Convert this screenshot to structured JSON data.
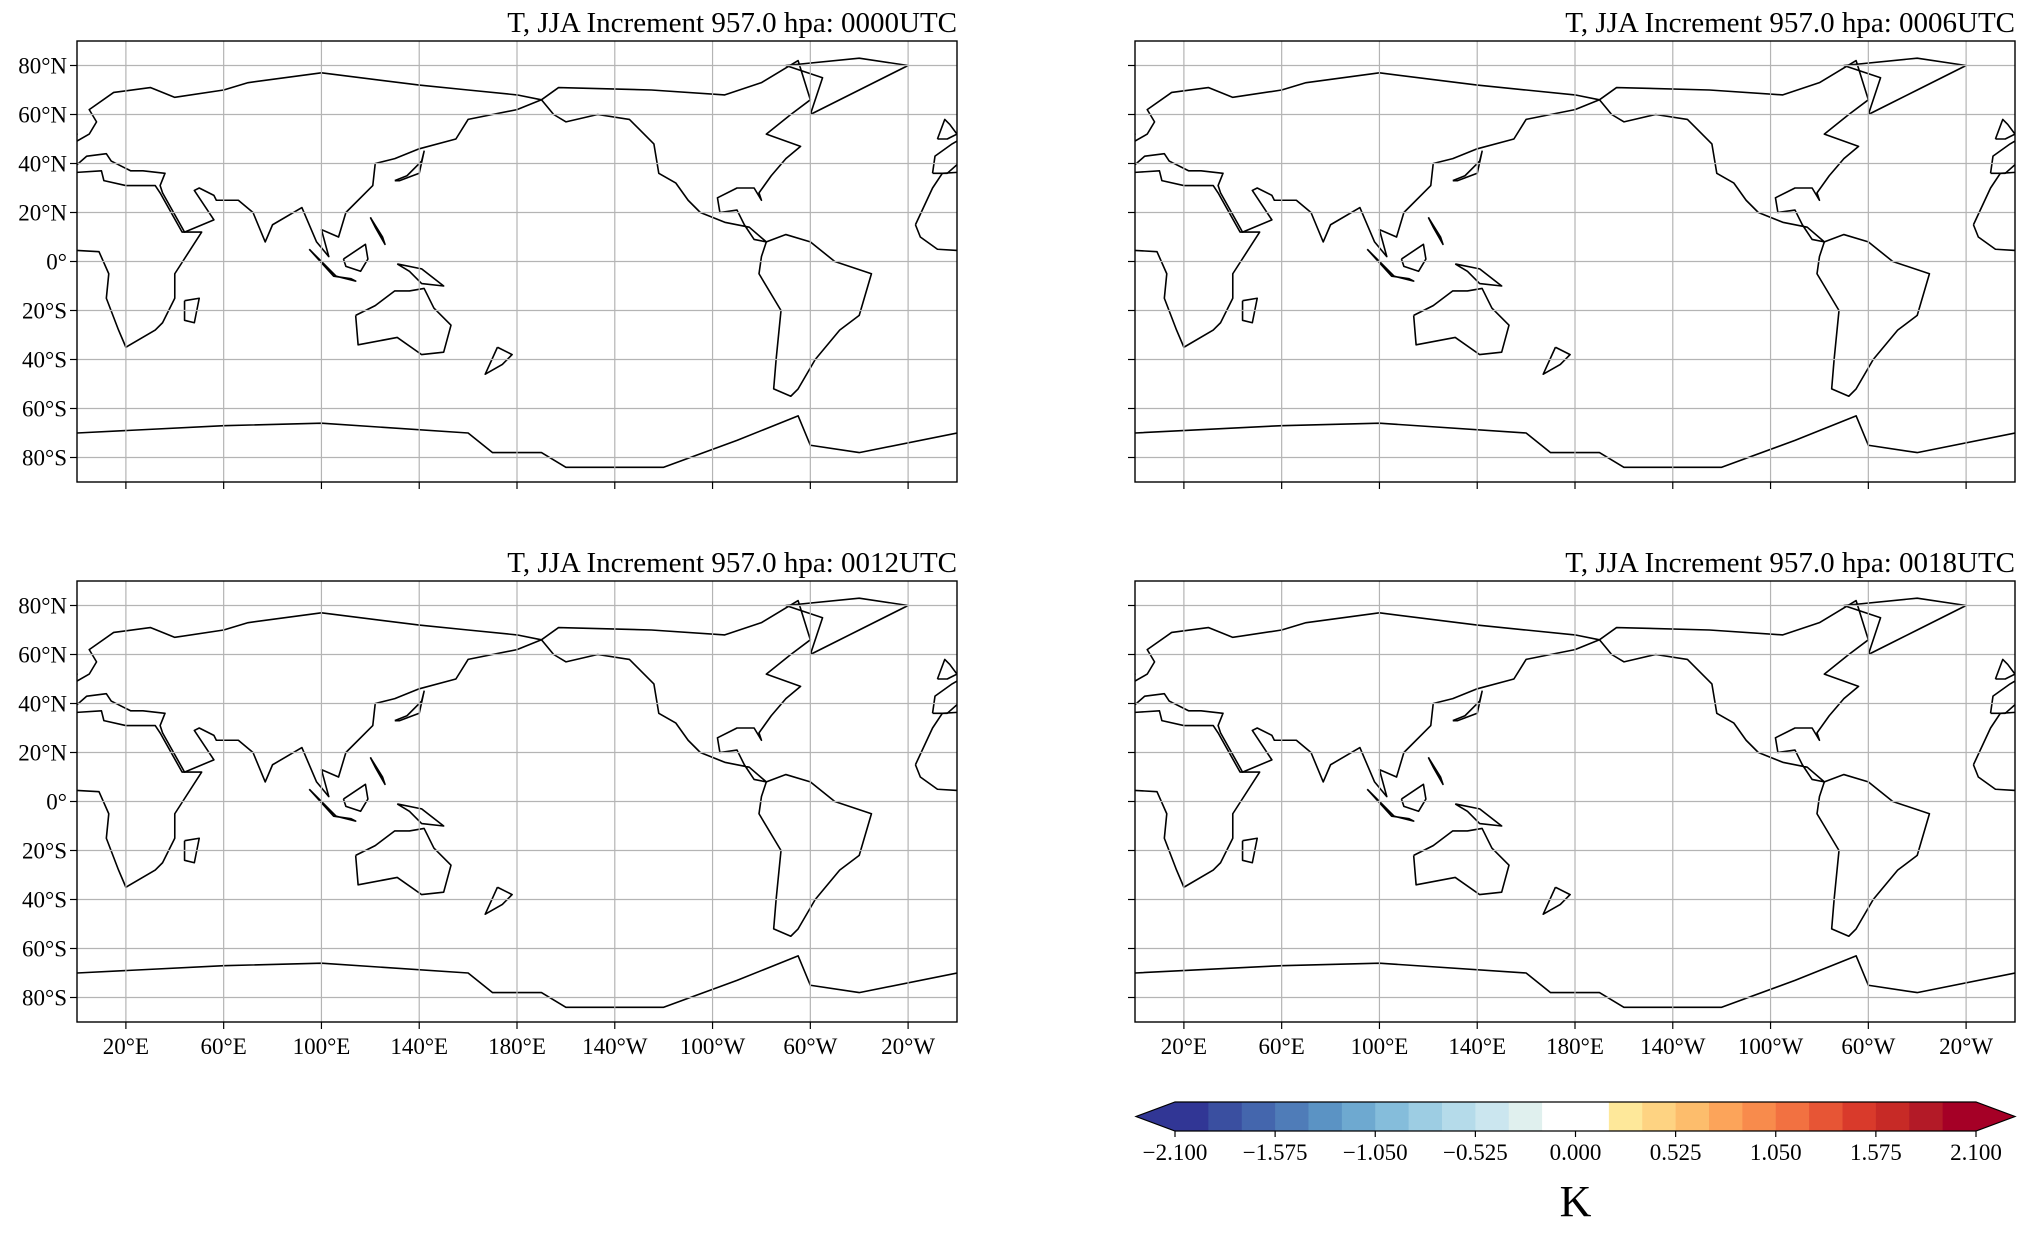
{
  "panels": [
    {
      "title": "T, JJA Increment 957.0 hpa:  0000UTC"
    },
    {
      "title": "T, JJA Increment 957.0 hpa:  0006UTC"
    },
    {
      "title": "T, JJA Increment 957.0 hpa:  0012UTC"
    },
    {
      "title": "T, JJA Increment 957.0 hpa:  0018UTC"
    }
  ],
  "xlim": [
    0,
    360
  ],
  "ylim": [
    -90,
    90
  ],
  "grid": true,
  "lat_ticks": [
    {
      "value": 80,
      "label": "80°N"
    },
    {
      "value": 60,
      "label": "60°N"
    },
    {
      "value": 40,
      "label": "40°N"
    },
    {
      "value": 20,
      "label": "20°N"
    },
    {
      "value": 0,
      "label": "0°"
    },
    {
      "value": -20,
      "label": "20°S"
    },
    {
      "value": -40,
      "label": "40°S"
    },
    {
      "value": -60,
      "label": "60°S"
    },
    {
      "value": -80,
      "label": "80°S"
    }
  ],
  "lon_ticks": [
    {
      "value": 20,
      "label": "20°E"
    },
    {
      "value": 60,
      "label": "60°E"
    },
    {
      "value": 100,
      "label": "100°E"
    },
    {
      "value": 140,
      "label": "140°E"
    },
    {
      "value": 180,
      "label": "180°E"
    },
    {
      "value": 220,
      "label": "140°W"
    },
    {
      "value": 260,
      "label": "100°W"
    },
    {
      "value": 300,
      "label": "60°W"
    },
    {
      "value": 340,
      "label": "20°W"
    }
  ],
  "colorbar": {
    "label": "K",
    "lim": [
      -2.1,
      2.1
    ],
    "ticks": [
      {
        "value": -2.1,
        "label": "−2.100"
      },
      {
        "value": -1.575,
        "label": "−1.575"
      },
      {
        "value": -1.05,
        "label": "−1.050"
      },
      {
        "value": -0.525,
        "label": "−0.525"
      },
      {
        "value": 0,
        "label": "0.000"
      },
      {
        "value": 0.525,
        "label": "0.525"
      },
      {
        "value": 1.05,
        "label": "1.050"
      },
      {
        "value": 1.575,
        "label": "1.575"
      },
      {
        "value": 2.1,
        "label": "2.100"
      }
    ],
    "colors": [
      "#313695",
      "#3a4fa0",
      "#4466ad",
      "#4f7cb8",
      "#5b93c4",
      "#6ea9d0",
      "#85bddb",
      "#9dcde3",
      "#b5dbea",
      "#cbe6ef",
      "#e0f0ee",
      "#ffffff",
      "#ffffff",
      "#fee89a",
      "#fed382",
      "#fdbd6c",
      "#fca45a",
      "#f88b4c",
      "#f27141",
      "#e75535",
      "#d93a2b",
      "#c72a26",
      "#b31a27",
      "#a50026"
    ]
  }
}
